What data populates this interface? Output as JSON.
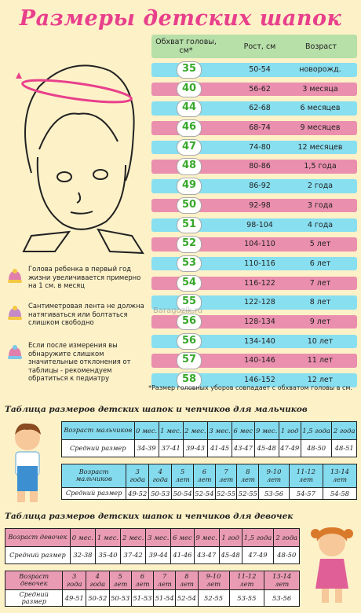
{
  "title": "Размеры детских шапок",
  "table": {
    "headers": {
      "head": "Обхват головы, см*",
      "height": "Рост, см",
      "age": "Возраст"
    },
    "rows": [
      {
        "size": "35",
        "height": "50-54",
        "age": "новорожд."
      },
      {
        "size": "40",
        "height": "56-62",
        "age": "3 месяца"
      },
      {
        "size": "44",
        "height": "62-68",
        "age": "6 месяцев"
      },
      {
        "size": "46",
        "height": "68-74",
        "age": "9 месяцев"
      },
      {
        "size": "47",
        "height": "74-80",
        "age": "12 месяцев"
      },
      {
        "size": "48",
        "height": "80-86",
        "age": "1,5 года"
      },
      {
        "size": "49",
        "height": "86-92",
        "age": "2 года"
      },
      {
        "size": "50",
        "height": "92-98",
        "age": "3 года"
      },
      {
        "size": "51",
        "height": "98-104",
        "age": "4 года"
      },
      {
        "size": "52",
        "height": "104-110",
        "age": "5 лет"
      },
      {
        "size": "53",
        "height": "110-116",
        "age": "6 лет"
      },
      {
        "size": "54",
        "height": "116-122",
        "age": "7 лет"
      },
      {
        "size": "55",
        "height": "122-128",
        "age": "8 лет"
      },
      {
        "size": "56",
        "height": "128-134",
        "age": "9 лет"
      },
      {
        "size": "56",
        "height": "134-140",
        "age": "10 лет"
      },
      {
        "size": "57",
        "height": "140-146",
        "age": "11 лет"
      },
      {
        "size": "58",
        "height": "146-152",
        "age": "12 лет"
      }
    ]
  },
  "note": "*Размер головных уборов совпадает с обхватом головы в см.",
  "watermark": "Baragozik.ru",
  "tips": [
    "Голова ребенка в первый год жизни увеличивается примерно на 1 см. в месяц",
    "Сантиметровая лента не должна натягиваться или болтаться слишком свободно",
    "Если после измерения вы обнаружите слишком значительные отклонения от таблицы - рекомендуем обратиться к педиатру"
  ],
  "boys": {
    "title": "Таблица размеров детских шапок и чепчиков для мальчиков",
    "age_label": "Возраст мальчиков",
    "size_label": "Средний размер",
    "row1": {
      "ages": [
        "0 мес.",
        "1 мес.",
        "2 мес.",
        "3 мес.",
        "6 мес",
        "9 мес.",
        "1 год",
        "1,5 года",
        "2 года"
      ],
      "sizes": [
        "34-39",
        "37-41",
        "39-43",
        "41-45",
        "43-47",
        "45-48",
        "47-49",
        "48-50",
        "48-51"
      ]
    },
    "row2": {
      "ages": [
        "3 года",
        "4 года",
        "5 лет",
        "6 лет",
        "7 лет",
        "8 лет",
        "9-10 лет",
        "11-12 лет",
        "13-14 лет"
      ],
      "sizes": [
        "49-52",
        "50-53",
        "50-54",
        "52-54",
        "52-55",
        "52-55",
        "53-56",
        "54-57",
        "54-58"
      ]
    }
  },
  "girls": {
    "title": "Таблица размеров детских шапок и чепчиков для девочек",
    "age_label": "Возраст девочек",
    "size_label": "Средний размер",
    "row1": {
      "ages": [
        "0 мес.",
        "1 мес.",
        "2 мес.",
        "3 мес.",
        "6 мес",
        "9 мес.",
        "1 год",
        "1,5 года",
        "2 года"
      ],
      "sizes": [
        "32-38",
        "35-40",
        "37-42",
        "39-44",
        "41-46",
        "43-47",
        "45-48",
        "47-49",
        "48-50"
      ]
    },
    "row2": {
      "ages": [
        "3 года",
        "4 года",
        "5 лет",
        "6 лет",
        "7 лет",
        "8 лет",
        "9-10 лет",
        "11-12 лет",
        "13-14 лет"
      ],
      "sizes": [
        "49-51",
        "50-52",
        "50-53",
        "51-53",
        "51-54",
        "52-54",
        "52-55",
        "53-55",
        "53-56"
      ]
    }
  },
  "colors": {
    "title": "#e8408c",
    "cyan": "#88dff0",
    "pink": "#ea8fae",
    "green_header": "#b7dfa8",
    "size_text": "#37a82a"
  }
}
